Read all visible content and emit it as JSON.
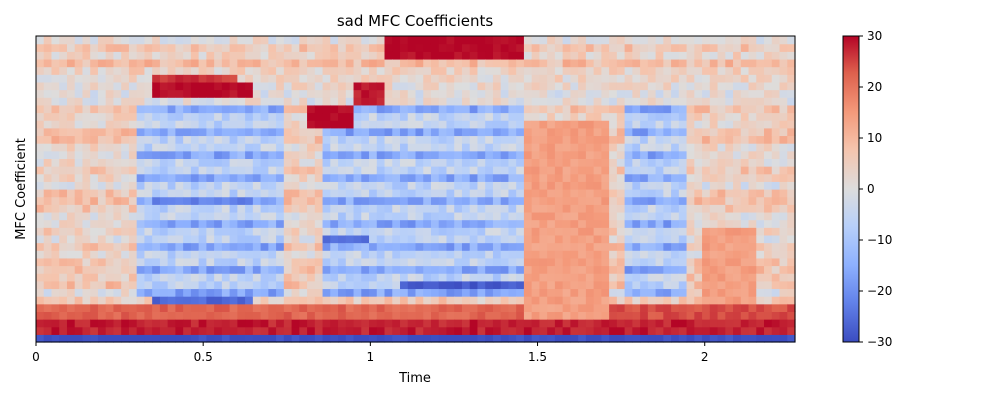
{
  "chart_data": {
    "type": "heatmap",
    "title": "sad MFC Coefficients",
    "xlabel": "Time",
    "ylabel": "MFC Coefficient",
    "xlim": [
      0,
      2.27
    ],
    "x_ticks": [
      0,
      0.5,
      1,
      1.5,
      2
    ],
    "x_tick_labels": [
      "0",
      "0.5",
      "1",
      "1.5",
      "2"
    ],
    "n_coefficients": 40,
    "n_frames": 98,
    "colorbar": {
      "colormap": "coolwarm",
      "range": [
        -30,
        30
      ],
      "ticks": [
        30,
        20,
        10,
        0,
        -10,
        -20,
        -30
      ],
      "tick_labels": [
        "30",
        "20",
        "10",
        "0",
        "−10",
        "−20",
        "−30"
      ]
    },
    "features": [
      {
        "t0": 0.0,
        "t1": 2.27,
        "c0": 0,
        "c1": 0,
        "value": -30
      },
      {
        "t0": 0.0,
        "t1": 2.27,
        "c0": 1,
        "c1": 2,
        "value": 28
      },
      {
        "t0": 0.0,
        "t1": 1.45,
        "c0": 3,
        "c1": 4,
        "value": 22
      },
      {
        "t0": 1.72,
        "t1": 2.27,
        "c0": 3,
        "c1": 4,
        "value": 24
      },
      {
        "t0": 0.35,
        "t1": 0.65,
        "c0": 32,
        "c1": 33,
        "value": 30
      },
      {
        "t0": 0.35,
        "t1": 0.6,
        "c0": 34,
        "c1": 34,
        "value": 26
      },
      {
        "t0": 0.82,
        "t1": 0.95,
        "c0": 28,
        "c1": 30,
        "value": 30
      },
      {
        "t0": 0.95,
        "t1": 1.05,
        "c0": 31,
        "c1": 33,
        "value": 28
      },
      {
        "t0": 1.05,
        "t1": 1.45,
        "c0": 37,
        "c1": 39,
        "value": 30
      },
      {
        "t0": 1.1,
        "t1": 1.45,
        "c0": 7,
        "c1": 7,
        "value": -28
      },
      {
        "t0": 0.35,
        "t1": 0.65,
        "c0": 5,
        "c1": 5,
        "value": -26
      },
      {
        "t0": 0.35,
        "t1": 0.65,
        "c0": 18,
        "c1": 18,
        "value": -22
      },
      {
        "t0": 0.85,
        "t1": 1.0,
        "c0": 13,
        "c1": 13,
        "value": -24
      },
      {
        "t0": 1.45,
        "t1": 1.72,
        "c0": 3,
        "c1": 28,
        "value": 14
      },
      {
        "t0": 2.0,
        "t1": 2.15,
        "c0": 5,
        "c1": 14,
        "value": 14
      }
    ]
  }
}
